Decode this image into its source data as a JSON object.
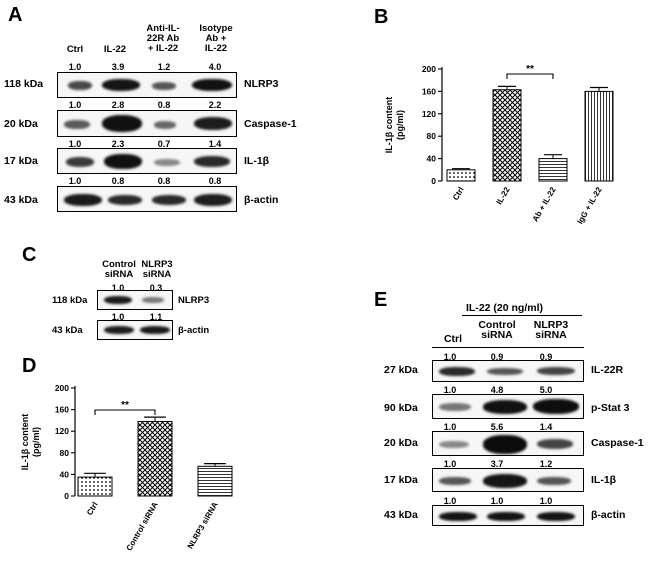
{
  "panel_letters": {
    "a": "A",
    "b": "B",
    "c": "C",
    "d": "D",
    "e": "E"
  },
  "panel_a": {
    "lanes": [
      "Ctrl",
      "IL-22",
      "Anti-IL-\n22R Ab\n+ IL-22",
      "Isotype\nAb +\nIL-22"
    ],
    "rows": [
      {
        "kda": "118 kDa",
        "protein": "NLRP3",
        "values": [
          "1.0",
          "3.9",
          "1.2",
          "4.0"
        ]
      },
      {
        "kda": "20 kDa",
        "protein": "Caspase-1",
        "values": [
          "1.0",
          "2.8",
          "0.8",
          "2.2"
        ]
      },
      {
        "kda": "17 kDa",
        "protein": "IL-1β",
        "values": [
          "1.0",
          "2.3",
          "0.7",
          "1.4"
        ]
      },
      {
        "kda": "43 kDa",
        "protein": "β-actin",
        "values": [
          "1.0",
          "0.8",
          "0.8",
          "0.8"
        ]
      }
    ]
  },
  "panel_c": {
    "lanes": [
      "Control\nsiRNA",
      "NLRP3\nsiRNA"
    ],
    "rows": [
      {
        "kda": "118 kDa",
        "protein": "NLRP3",
        "values": [
          "1.0",
          "0.3"
        ]
      },
      {
        "kda": "43 kDa",
        "protein": "β-actin",
        "values": [
          "1.0",
          "1.1"
        ]
      }
    ]
  },
  "panel_e": {
    "treatment": "IL-22 (20 ng/ml)",
    "lanes": [
      "Ctrl",
      "Control\nsiRNA",
      "NLRP3\nsiRNA"
    ],
    "rows": [
      {
        "kda": "27 kDa",
        "protein": "IL-22R",
        "values": [
          "1.0",
          "0.9",
          "0.9"
        ]
      },
      {
        "kda": "90 kDa",
        "protein": "p-Stat 3",
        "values": [
          "1.0",
          "4.8",
          "5.0"
        ]
      },
      {
        "kda": "20 kDa",
        "protein": "Caspase-1",
        "values": [
          "1.0",
          "5.6",
          "1.4"
        ]
      },
      {
        "kda": "17 kDa",
        "protein": "IL-1β",
        "values": [
          "1.0",
          "3.7",
          "1.2"
        ]
      },
      {
        "kda": "43 kDa",
        "protein": "β-actin",
        "values": [
          "1.0",
          "1.0",
          "1.0"
        ]
      }
    ]
  },
  "chart_data": [
    {
      "type": "bar",
      "panel": "B",
      "categories": [
        "Ctrl",
        "IL-22",
        "Ab + IL-22",
        "IgG + IL-22"
      ],
      "values": [
        20,
        163,
        40,
        160
      ],
      "errors": [
        2,
        6,
        7,
        7
      ],
      "patterns": [
        "dots",
        "crosshatch",
        "horizontal",
        "vertical"
      ],
      "ylabel": "IL-1β content\n(pg/ml)",
      "ylim": [
        0,
        200
      ],
      "yticks": [
        0,
        40,
        80,
        120,
        160,
        200
      ],
      "significance": {
        "from": 1,
        "to": 2,
        "label": "**"
      }
    },
    {
      "type": "bar",
      "panel": "D",
      "categories": [
        "Ctrl",
        "Control siRNA",
        "NLRP3 siRNA"
      ],
      "values": [
        35,
        138,
        55
      ],
      "errors": [
        7,
        8,
        5
      ],
      "patterns": [
        "dots",
        "crosshatch",
        "horizontal"
      ],
      "ylabel": "IL-1β content\n(pg/ml)",
      "ylim": [
        0,
        200
      ],
      "yticks": [
        0,
        40,
        80,
        120,
        160,
        200
      ],
      "significance": {
        "from": 0,
        "to": 1,
        "label": "**"
      }
    }
  ]
}
